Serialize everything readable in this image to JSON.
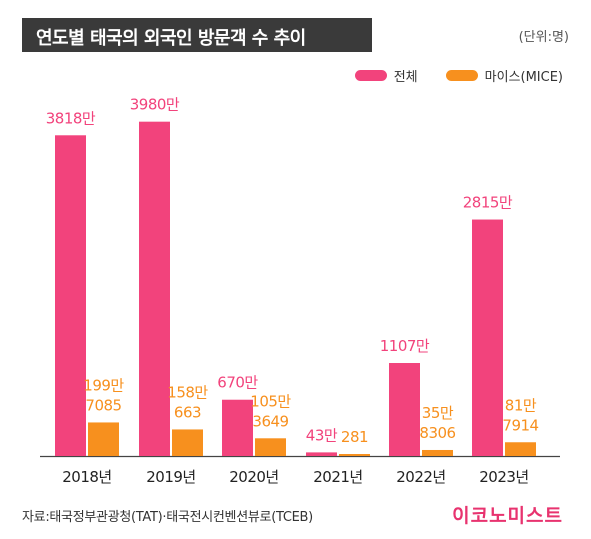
{
  "header": {
    "title": "연도별 태국의 외국인 방문객 수 추이",
    "unit": "(단위:명)"
  },
  "legend": {
    "total_label": "전체",
    "mice_label": "마이스(MICE)"
  },
  "colors": {
    "total": "#f2437c",
    "mice": "#f7901e",
    "title_bg": "#3a3a3a",
    "brand": "#e8336f"
  },
  "chart_data": {
    "type": "bar",
    "categories": [
      "2018년",
      "2019년",
      "2020년",
      "2021년",
      "2022년",
      "2023년"
    ],
    "series": [
      {
        "name": "전체",
        "values": [
          38180000,
          39800000,
          6700000,
          430000,
          11070000,
          28150000
        ],
        "labels": [
          "3818만",
          "3980만",
          "670만",
          "43만",
          "1107만",
          "2815만"
        ]
      },
      {
        "name": "마이스(MICE)",
        "values": [
          1997085,
          1580663,
          1053649,
          281,
          358306,
          817914
        ],
        "labels_top": [
          "199만",
          "158만",
          "105만",
          "",
          "35만",
          "81만"
        ],
        "labels_bottom": [
          "7085",
          "663",
          "3649",
          "281",
          "8306",
          "7914"
        ]
      }
    ]
  },
  "footer": {
    "source": "자료:태국정부관광청(TAT)·태국전시컨벤션뷰로(TCEB)",
    "brand": "이코노미스트"
  }
}
